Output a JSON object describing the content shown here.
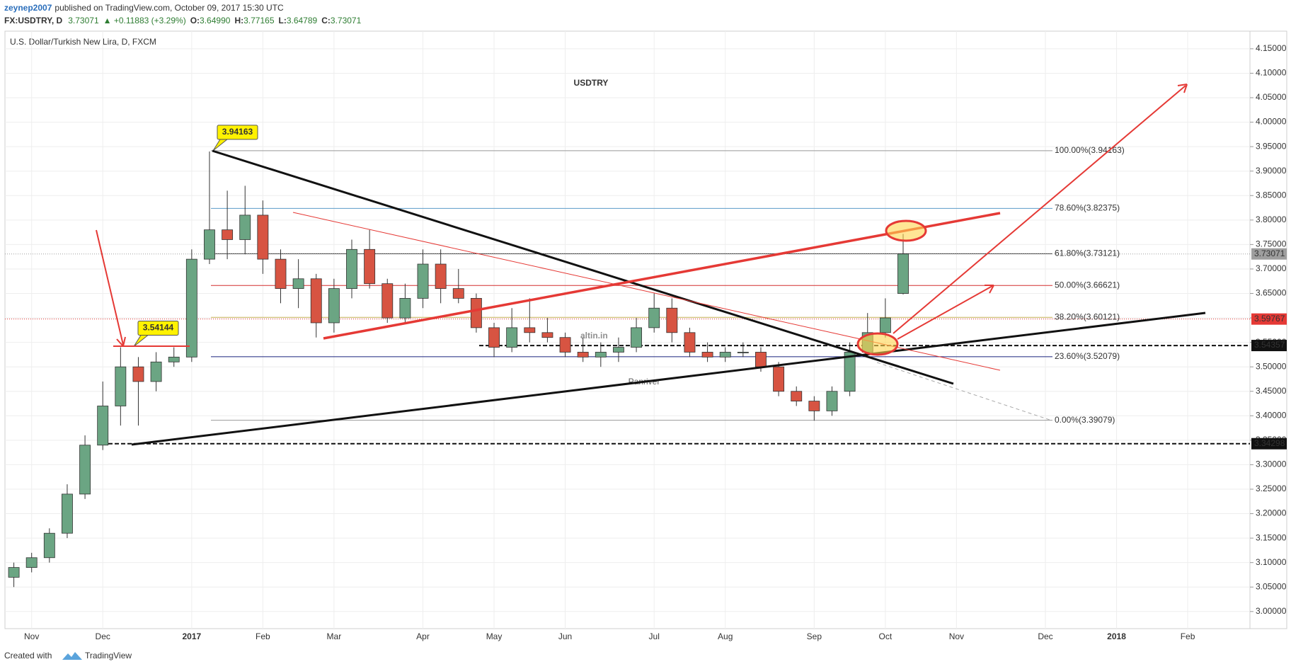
{
  "header": {
    "user": "zeynep2007",
    "published": "published on TradingView.com, October 09, 2017 15:30 UTC",
    "symbol": "FX:USDTRY, D",
    "last": "3.73071",
    "change": "▲ +0.11883 (+3.29%)",
    "ohlc": [
      {
        "k": "O:",
        "v": "3.64990"
      },
      {
        "k": "H:",
        "v": "3.77165"
      },
      {
        "k": "L:",
        "v": "3.64789"
      },
      {
        "k": "C:",
        "v": "3.73071"
      }
    ]
  },
  "footer": {
    "created": "Created with",
    "brand": "TradingView"
  },
  "chart_data": {
    "type": "candlestick",
    "title": "USDTRY",
    "legend": "U.S. Dollar/Turkish New Lira, D, FXCM",
    "watermark": "altin.in",
    "watermark_sub": "Panriver",
    "up_color": "#6ba583",
    "down_color": "#d75442",
    "grid": true,
    "ylim": [
      2.965,
      4.186
    ],
    "yticks": [
      {
        "value": 3.0,
        "label": "3.00000"
      },
      {
        "value": 3.05,
        "label": "3.05000"
      },
      {
        "value": 3.1,
        "label": "3.10000"
      },
      {
        "value": 3.15,
        "label": "3.15000"
      },
      {
        "value": 3.2,
        "label": "3.20000"
      },
      {
        "value": 3.25,
        "label": "3.25000"
      },
      {
        "value": 3.3,
        "label": "3.30000"
      },
      {
        "value": 3.35,
        "label": "3.35000"
      },
      {
        "value": 3.4,
        "label": "3.40000"
      },
      {
        "value": 3.45,
        "label": "3.45000"
      },
      {
        "value": 3.5,
        "label": "3.50000"
      },
      {
        "value": 3.55,
        "label": "3.55000"
      },
      {
        "value": 3.6,
        "label": "3.60000"
      },
      {
        "value": 3.65,
        "label": "3.65000"
      },
      {
        "value": 3.7,
        "label": "3.70000"
      },
      {
        "value": 3.75,
        "label": "3.75000"
      },
      {
        "value": 3.8,
        "label": "3.80000"
      },
      {
        "value": 3.85,
        "label": "3.85000"
      },
      {
        "value": 3.9,
        "label": "3.90000"
      },
      {
        "value": 3.95,
        "label": "3.95000"
      },
      {
        "value": 4.0,
        "label": "4.00000"
      },
      {
        "value": 4.05,
        "label": "4.05000"
      },
      {
        "value": 4.1,
        "label": "4.10000"
      },
      {
        "value": 4.15,
        "label": "4.15000"
      }
    ],
    "categories": [
      null,
      "Nov",
      null,
      null,
      null,
      "Dec",
      null,
      null,
      null,
      null,
      "2017",
      null,
      null,
      null,
      "Feb",
      null,
      null,
      null,
      "Mar",
      null,
      null,
      null,
      null,
      "Apr",
      null,
      null,
      null,
      "May",
      null,
      null,
      null,
      "Jun",
      null,
      null,
      null,
      null,
      "Jul",
      null,
      null,
      null,
      "Aug",
      null,
      null,
      null,
      null,
      "Sep",
      null,
      null,
      null,
      "Oct",
      null,
      null,
      null,
      "Nov",
      null,
      null,
      null,
      null,
      "Dec",
      null,
      null,
      null,
      "2018",
      null,
      null,
      null,
      "Feb",
      null,
      null,
      null
    ],
    "ohlc": [
      [
        3.07,
        3.1,
        3.05,
        3.09
      ],
      [
        3.09,
        3.12,
        3.08,
        3.11
      ],
      [
        3.11,
        3.17,
        3.1,
        3.16
      ],
      [
        3.16,
        3.26,
        3.15,
        3.24
      ],
      [
        3.24,
        3.36,
        3.23,
        3.34
      ],
      [
        3.34,
        3.47,
        3.33,
        3.42
      ],
      [
        3.42,
        3.54,
        3.38,
        3.5
      ],
      [
        3.5,
        3.52,
        3.38,
        3.47
      ],
      [
        3.47,
        3.53,
        3.45,
        3.51
      ],
      [
        3.51,
        3.54,
        3.5,
        3.52
      ],
      [
        3.52,
        3.74,
        3.51,
        3.72
      ],
      [
        3.72,
        3.94,
        3.71,
        3.78
      ],
      [
        3.78,
        3.86,
        3.72,
        3.76
      ],
      [
        3.76,
        3.87,
        3.73,
        3.81
      ],
      [
        3.81,
        3.84,
        3.69,
        3.72
      ],
      [
        3.72,
        3.74,
        3.63,
        3.66
      ],
      [
        3.66,
        3.72,
        3.62,
        3.68
      ],
      [
        3.68,
        3.69,
        3.56,
        3.59
      ],
      [
        3.59,
        3.68,
        3.57,
        3.66
      ],
      [
        3.66,
        3.76,
        3.64,
        3.74
      ],
      [
        3.74,
        3.78,
        3.66,
        3.67
      ],
      [
        3.67,
        3.68,
        3.59,
        3.6
      ],
      [
        3.6,
        3.67,
        3.59,
        3.64
      ],
      [
        3.64,
        3.74,
        3.62,
        3.71
      ],
      [
        3.71,
        3.74,
        3.63,
        3.66
      ],
      [
        3.66,
        3.7,
        3.63,
        3.64
      ],
      [
        3.64,
        3.65,
        3.57,
        3.58
      ],
      [
        3.58,
        3.59,
        3.52,
        3.54
      ],
      [
        3.54,
        3.62,
        3.53,
        3.58
      ],
      [
        3.58,
        3.64,
        3.55,
        3.57
      ],
      [
        3.57,
        3.6,
        3.55,
        3.56
      ],
      [
        3.56,
        3.57,
        3.52,
        3.53
      ],
      [
        3.53,
        3.56,
        3.51,
        3.52
      ],
      [
        3.52,
        3.55,
        3.5,
        3.53
      ],
      [
        3.53,
        3.56,
        3.51,
        3.54
      ],
      [
        3.54,
        3.6,
        3.53,
        3.58
      ],
      [
        3.58,
        3.65,
        3.57,
        3.62
      ],
      [
        3.62,
        3.64,
        3.55,
        3.57
      ],
      [
        3.57,
        3.58,
        3.52,
        3.53
      ],
      [
        3.53,
        3.55,
        3.51,
        3.52
      ],
      [
        3.52,
        3.54,
        3.51,
        3.53
      ],
      [
        3.53,
        3.55,
        3.52,
        3.53
      ],
      [
        3.53,
        3.54,
        3.49,
        3.5
      ],
      [
        3.5,
        3.51,
        3.44,
        3.45
      ],
      [
        3.45,
        3.46,
        3.42,
        3.43
      ],
      [
        3.43,
        3.44,
        3.39,
        3.41
      ],
      [
        3.41,
        3.46,
        3.4,
        3.45
      ],
      [
        3.45,
        3.55,
        3.44,
        3.53
      ],
      [
        3.53,
        3.61,
        3.52,
        3.57
      ],
      [
        3.57,
        3.64,
        3.56,
        3.6
      ],
      [
        3.6499,
        3.77165,
        3.64789,
        3.73071
      ],
      null,
      null,
      null,
      null,
      null,
      null,
      null,
      null,
      null,
      null,
      null,
      null,
      null,
      null,
      null,
      null,
      null,
      null,
      null
    ],
    "fib_levels": [
      {
        "value": 3.94163,
        "label": "100.00%(3.94163)",
        "color": "#999999"
      },
      {
        "value": 3.82375,
        "label": "78.60%(3.82375)",
        "color": "#5b9cc8"
      },
      {
        "value": 3.73121,
        "label": "61.80%(3.73121)",
        "color": "#333333"
      },
      {
        "value": 3.66621,
        "label": "50.00%(3.66621)",
        "color": "#d32f2f"
      },
      {
        "value": 3.60121,
        "label": "38.20%(3.60121)",
        "color": "#c9b458"
      },
      {
        "value": 3.52079,
        "label": "23.60%(3.52079)",
        "color": "#1a237e"
      },
      {
        "value": 3.39079,
        "label": "0.00%(3.39079)",
        "color": "#999999"
      }
    ],
    "price_tags": [
      {
        "value": 3.73071,
        "label": "3.73071",
        "color": "#9e9e9e",
        "style": "dotted"
      },
      {
        "value": 3.59767,
        "label": "3.59767",
        "color": "#e53935",
        "style": "dotted"
      },
      {
        "value": 3.54357,
        "label": "3.54357",
        "color": "#111111",
        "style": "dashed"
      },
      {
        "value": 3.34298,
        "label": "3.34298",
        "color": "#111111",
        "style": "dashed"
      }
    ],
    "callouts": [
      {
        "value": 3.94163,
        "label": "3.94163"
      },
      {
        "value": 3.54144,
        "label": "3.54144"
      }
    ]
  }
}
